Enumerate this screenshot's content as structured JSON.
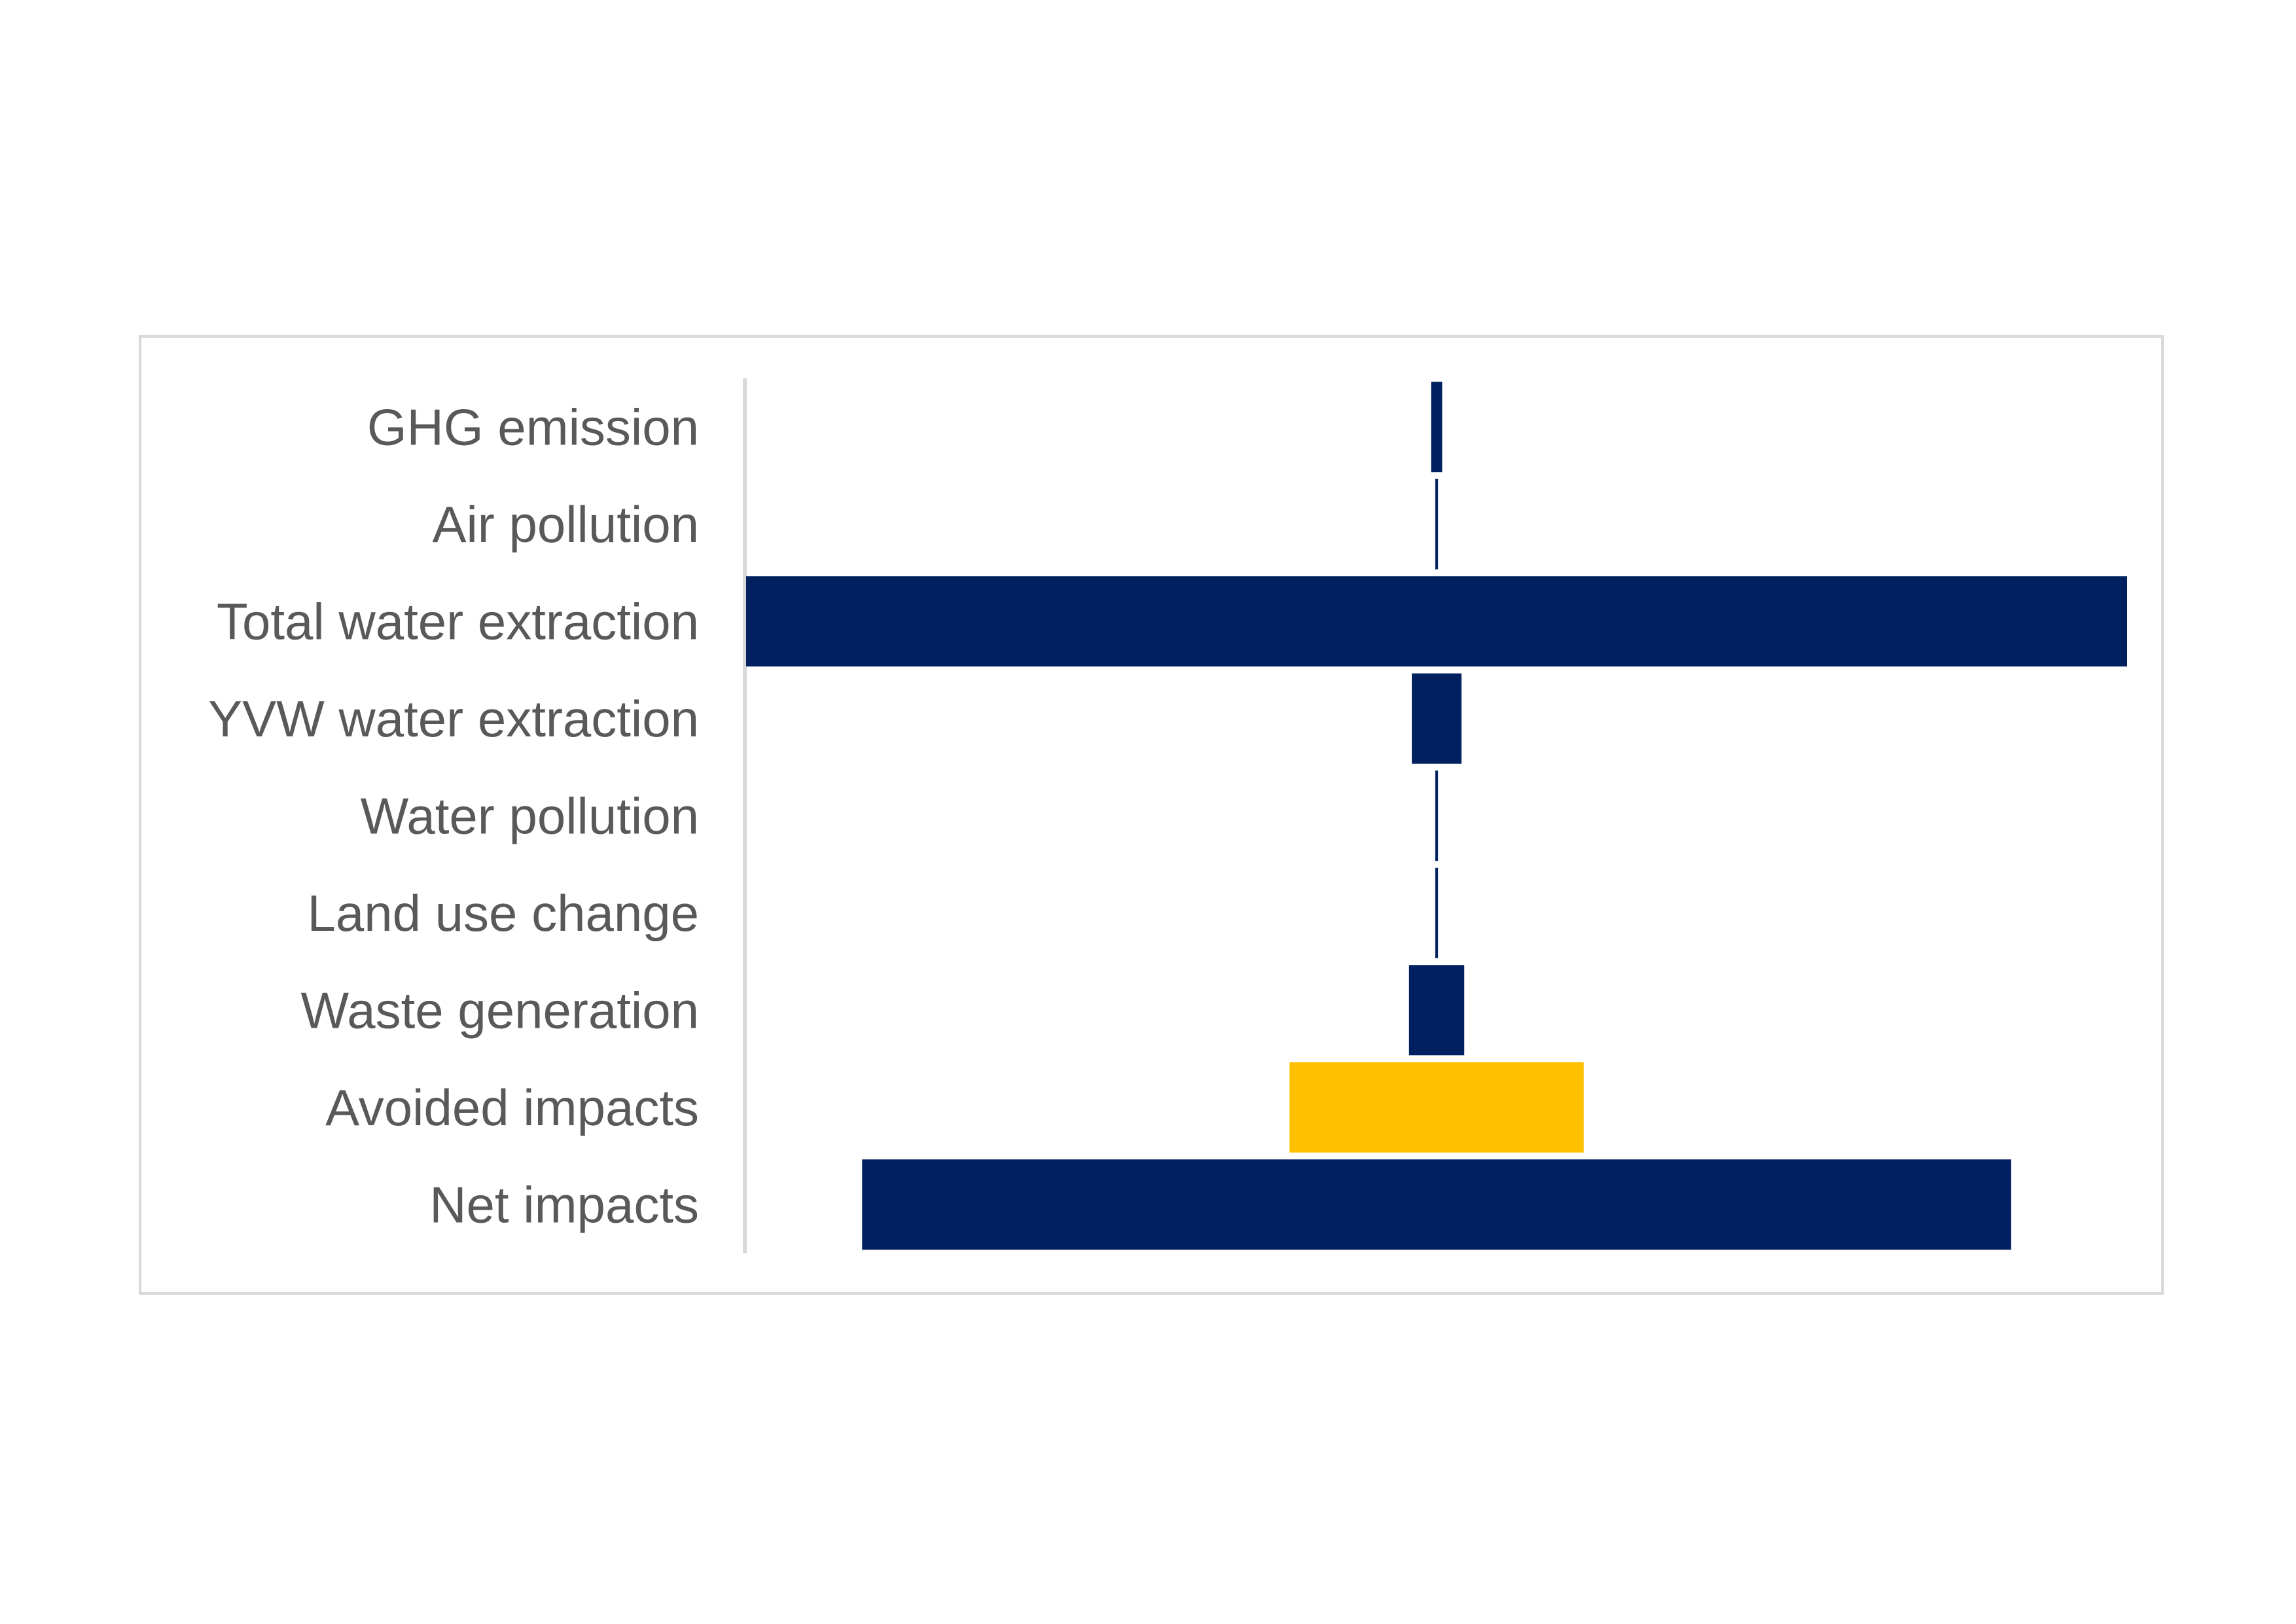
{
  "chart_data": {
    "type": "bar",
    "orientation": "horizontal",
    "layout": "centered-tornado",
    "title": "",
    "xlabel": "",
    "ylabel": "",
    "axis_ticks_shown": false,
    "grid": false,
    "legend": "none",
    "categories": [
      "GHG emission",
      "Air pollution",
      "Total water extraction",
      "YVW water extraction",
      "Water pollution",
      "Land use change",
      "Waste generation",
      "Avoided impacts",
      "Net impacts"
    ],
    "values": [
      0.8,
      0.2,
      100,
      3.6,
      0.2,
      0.2,
      4.0,
      21.3,
      83.2
    ],
    "xlim": [
      0,
      100
    ],
    "bar_colors": [
      "#002060",
      "#002060",
      "#002060",
      "#002060",
      "#002060",
      "#002060",
      "#002060",
      "#FFC000",
      "#002060"
    ]
  },
  "colors": {
    "impact": "#002060",
    "avoided": "#FFC000",
    "label_text": "#595959",
    "frame": "#d9d9d9",
    "axis": "#d9d9d9"
  }
}
